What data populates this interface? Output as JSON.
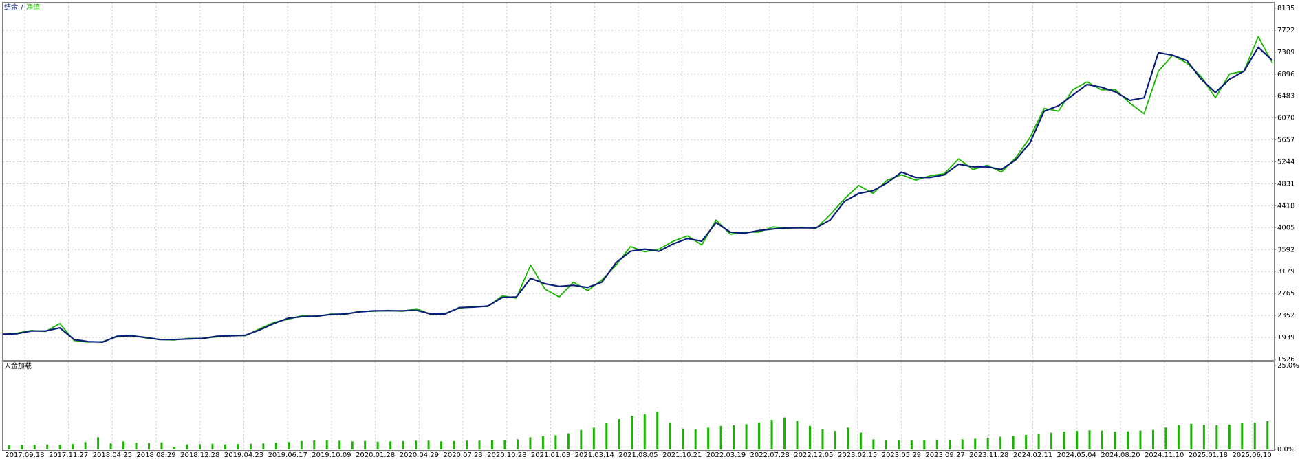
{
  "chart_data": [
    {
      "type": "line",
      "legend_separator": "/",
      "series": [
        {
          "name": "结余",
          "color": "#0a1e78",
          "values": [
            2000,
            2010,
            2060,
            2060,
            2120,
            1900,
            1860,
            1850,
            1960,
            1970,
            1940,
            1900,
            1900,
            1910,
            1920,
            1960,
            1970,
            1980,
            2080,
            2200,
            2300,
            2330,
            2340,
            2370,
            2380,
            2420,
            2440,
            2440,
            2440,
            2450,
            2380,
            2380,
            2500,
            2510,
            2530,
            2690,
            2700,
            3050,
            2950,
            2900,
            2920,
            2880,
            2980,
            3350,
            3560,
            3600,
            3560,
            3700,
            3800,
            3750,
            4100,
            3920,
            3900,
            3950,
            3980,
            4000,
            4000,
            4000,
            4150,
            4500,
            4650,
            4700,
            4850,
            5050,
            4950,
            4950,
            5000,
            5200,
            5150,
            5150,
            5100,
            5280,
            5600,
            6200,
            6300,
            6500,
            6700,
            6650,
            6560,
            6400,
            6450,
            7300,
            7250,
            7150,
            6800,
            6550,
            6800,
            6950,
            7400,
            7150
          ]
        },
        {
          "name": "净值",
          "color": "#19b400",
          "values": [
            2000,
            2020,
            2070,
            2050,
            2200,
            1880,
            1850,
            1860,
            1950,
            1980,
            1930,
            1900,
            1890,
            1920,
            1920,
            1950,
            1980,
            1970,
            2100,
            2220,
            2280,
            2350,
            2330,
            2380,
            2370,
            2430,
            2430,
            2450,
            2430,
            2480,
            2370,
            2390,
            2490,
            2520,
            2520,
            2720,
            2680,
            3300,
            2850,
            2700,
            2980,
            2820,
            3020,
            3300,
            3650,
            3550,
            3600,
            3750,
            3850,
            3680,
            4150,
            3880,
            3920,
            3920,
            4020,
            3990,
            4010,
            3990,
            4250,
            4550,
            4800,
            4650,
            4900,
            5000,
            4900,
            4980,
            5020,
            5300,
            5100,
            5180,
            5050,
            5320,
            5700,
            6250,
            6200,
            6600,
            6750,
            6600,
            6600,
            6350,
            6150,
            6950,
            7250,
            7100,
            6850,
            6450,
            6900,
            6950,
            7600,
            7100
          ]
        }
      ],
      "ylim": [
        1526,
        8135
      ],
      "yticks": [
        8135,
        7722,
        7309,
        6896,
        6483,
        6070,
        5657,
        5244,
        4831,
        4418,
        4005,
        3592,
        3179,
        2765,
        2352,
        1939,
        1526
      ],
      "grid": true
    },
    {
      "type": "bar",
      "title": "入金加载",
      "color": "#19b400",
      "values": [
        1.2,
        1.3,
        1.4,
        1.5,
        1.4,
        1.6,
        2.2,
        3.6,
        1.8,
        2.4,
        2.0,
        1.9,
        2.1,
        0.8,
        1.5,
        1.6,
        1.7,
        1.5,
        1.6,
        1.7,
        1.8,
        2.0,
        2.2,
        2.5,
        2.7,
        2.8,
        2.6,
        2.4,
        2.5,
        2.3,
        2.4,
        2.5,
        2.6,
        2.6,
        2.4,
        2.5,
        2.6,
        2.6,
        2.7,
        2.8,
        3.0,
        3.6,
        4.0,
        4.2,
        4.8,
        5.8,
        6.5,
        7.8,
        9.0,
        10.0,
        10.5,
        11.2,
        8.0,
        6.2,
        6.0,
        6.5,
        7.0,
        7.2,
        7.5,
        8.0,
        8.8,
        9.5,
        8.5,
        7.0,
        6.0,
        5.5,
        6.5,
        5.0,
        3.0,
        2.8,
        2.8,
        2.7,
        2.8,
        2.9,
        2.9,
        3.0,
        3.2,
        3.5,
        3.8,
        4.0,
        4.3,
        4.6,
        5.0,
        5.3,
        5.5,
        5.7,
        5.6,
        5.3,
        5.4,
        5.6,
        5.8,
        6.5,
        7.2,
        7.6,
        7.3,
        7.2,
        7.4,
        7.8,
        8.0,
        8.4
      ],
      "ylim": [
        0,
        25
      ],
      "yticks": [
        {
          "value": 25,
          "label": "25.0%"
        },
        {
          "value": 0,
          "label": "0.0%"
        }
      ],
      "x_labels": [
        "2017.09.18",
        "2017.11.27",
        "2018.04.25",
        "2018.08.29",
        "2018.12.28",
        "2019.04.23",
        "2019.06.17",
        "2019.10.09",
        "2020.01.28",
        "2020.04.29",
        "2020.07.23",
        "2020.10.28",
        "2021.01.03",
        "2021.03.14",
        "2021.08.05",
        "2021.10.21",
        "2022.03.19",
        "2022.07.28",
        "2022.12.05",
        "2023.02.15",
        "2023.05.29",
        "2023.09.27",
        "2023.11.28",
        "2024.02.11",
        "2024.05.04",
        "2024.08.20",
        "2024.11.10",
        "2025.01.18",
        "2025.06.10"
      ],
      "grid": true
    }
  ]
}
